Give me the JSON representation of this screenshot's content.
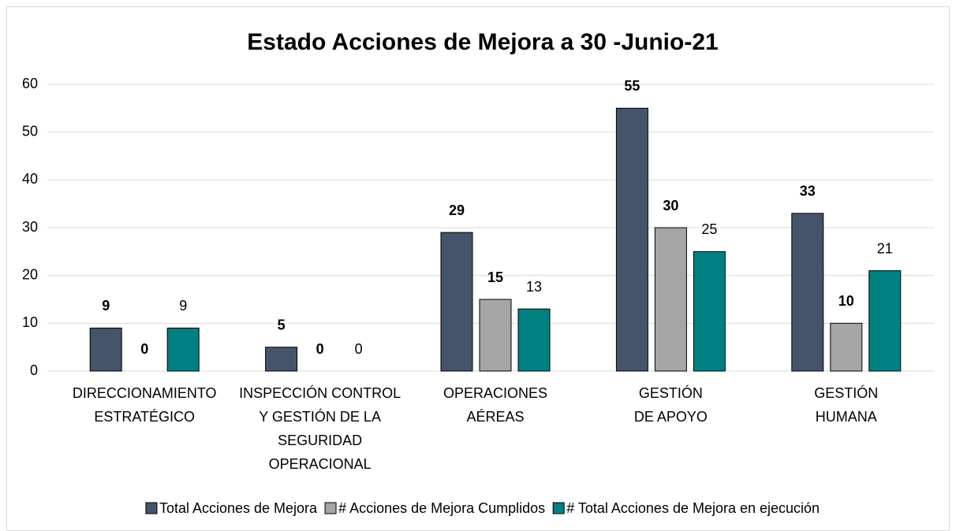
{
  "chart_data": {
    "type": "bar",
    "title": "Estado Acciones de Mejora a 30 -Junio-21",
    "categories": [
      [
        "DIRECCIONAMIENTO",
        "ESTRATÉGICO"
      ],
      [
        "INSPECCIÓN CONTROL",
        "Y GESTIÓN DE LA",
        "SEGURIDAD",
        "OPERACIONAL"
      ],
      [
        "OPERACIONES",
        "AÉREAS"
      ],
      [
        "GESTIÓN",
        "DE APOYO"
      ],
      [
        "GESTIÓN",
        "HUMANA"
      ]
    ],
    "series": [
      {
        "name": "Total Acciones de Mejora",
        "color": "#44546a",
        "values": [
          9,
          5,
          29,
          55,
          33
        ]
      },
      {
        "name": "# Acciones de Mejora Cumplidos",
        "color": "#a5a5a5",
        "values": [
          0,
          0,
          15,
          30,
          10
        ]
      },
      {
        "name": "# Total Acciones de Mejora en ejecución",
        "color": "#008080",
        "values": [
          9,
          0,
          13,
          25,
          21
        ]
      }
    ],
    "ylim": [
      0,
      60
    ],
    "yticks": [
      0,
      10,
      20,
      30,
      40,
      50,
      60
    ],
    "grid": true,
    "legend": "bottom"
  }
}
